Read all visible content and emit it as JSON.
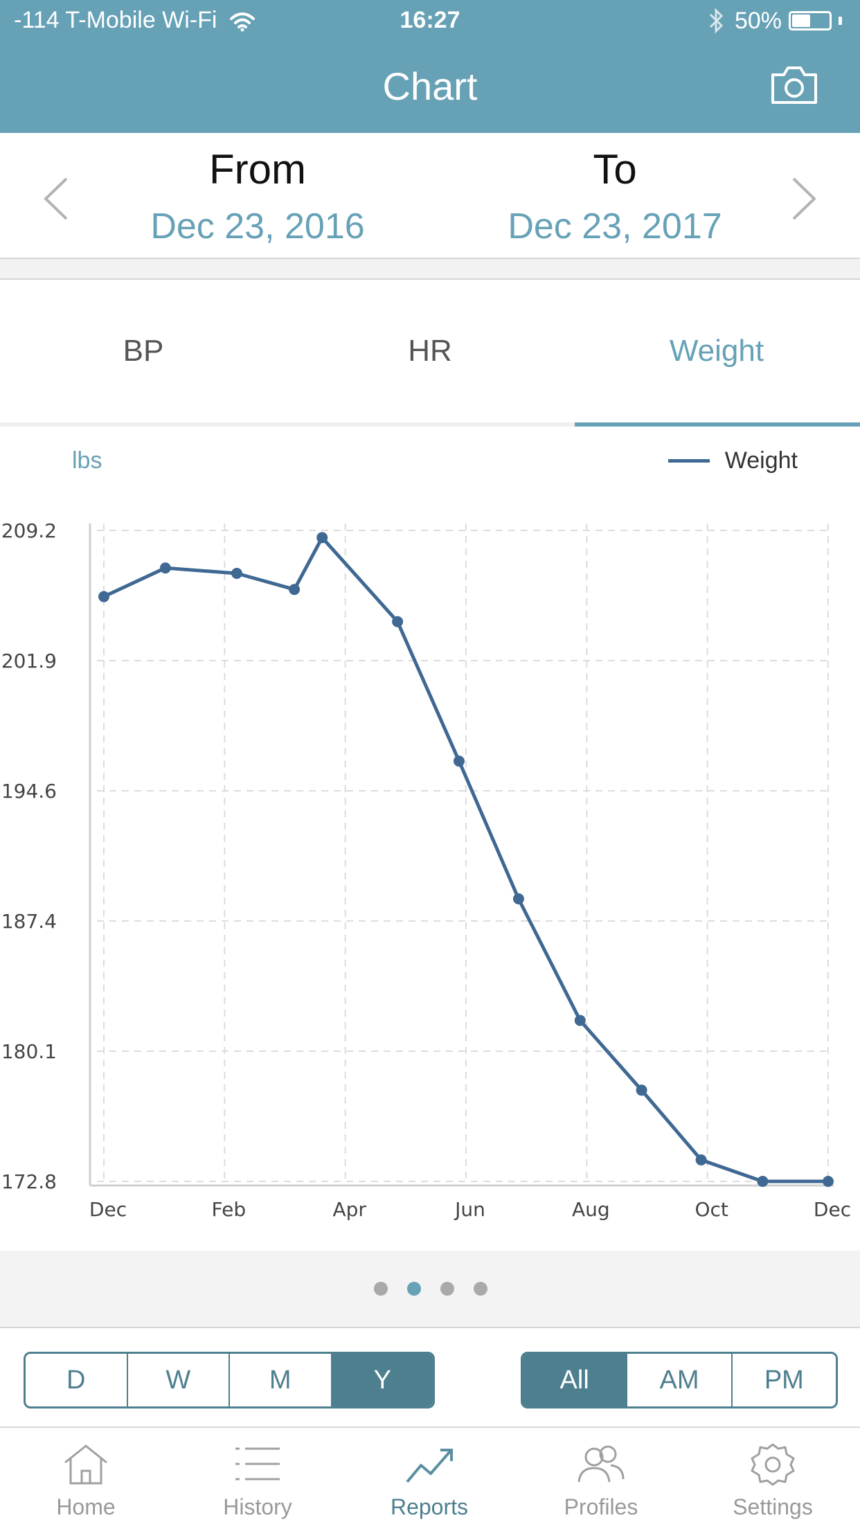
{
  "status_bar": {
    "carrier": "-114 T-Mobile Wi-Fi",
    "time": "16:27",
    "battery": "50%",
    "battery_level": 0.5
  },
  "header": {
    "title": "Chart",
    "camera_icon": "camera-icon"
  },
  "date_range": {
    "from_label": "From",
    "from_value": "Dec 23, 2016",
    "to_label": "To",
    "to_value": "Dec 23, 2017"
  },
  "tabs": [
    {
      "label": "BP",
      "active": false
    },
    {
      "label": "HR",
      "active": false
    },
    {
      "label": "Weight",
      "active": true
    }
  ],
  "chart_data": {
    "type": "line",
    "unit_label": "lbs",
    "legend": [
      "Weight"
    ],
    "legend_position": "top-right",
    "grid": true,
    "x_tick_labels": [
      "Dec",
      "Feb",
      "Apr",
      "Jun",
      "Aug",
      "Oct",
      "Dec"
    ],
    "y_tick_labels": [
      "209.2",
      "201.9",
      "194.6",
      "187.4",
      "180.1",
      "172.8"
    ],
    "ylim": [
      172.8,
      209.2
    ],
    "series": [
      {
        "name": "Weight",
        "color": "#3f6893",
        "x": [
          "2016-12-23",
          "2017-01-23",
          "2017-02-28",
          "2017-03-29",
          "2017-04-12",
          "2017-05-20",
          "2017-06-20",
          "2017-07-20",
          "2017-08-20",
          "2017-09-20",
          "2017-10-20",
          "2017-11-20",
          "2017-12-23"
        ],
        "values": [
          205.5,
          207.1,
          206.8,
          205.9,
          208.8,
          204.1,
          196.3,
          188.6,
          181.8,
          177.9,
          174.0,
          172.8,
          172.8
        ]
      }
    ]
  },
  "pager": {
    "count": 4,
    "active_index": 1
  },
  "period_options": [
    {
      "label": "D",
      "active": false
    },
    {
      "label": "W",
      "active": false
    },
    {
      "label": "M",
      "active": false
    },
    {
      "label": "Y",
      "active": true
    }
  ],
  "time_options": [
    {
      "label": "All",
      "active": true
    },
    {
      "label": "AM",
      "active": false
    },
    {
      "label": "PM",
      "active": false
    }
  ],
  "tab_bar": [
    {
      "label": "Home",
      "icon": "home-icon",
      "active": false
    },
    {
      "label": "History",
      "icon": "list-icon",
      "active": false
    },
    {
      "label": "Reports",
      "icon": "trend-icon",
      "active": true
    },
    {
      "label": "Profiles",
      "icon": "people-icon",
      "active": false
    },
    {
      "label": "Settings",
      "icon": "gear-icon",
      "active": false
    }
  ]
}
